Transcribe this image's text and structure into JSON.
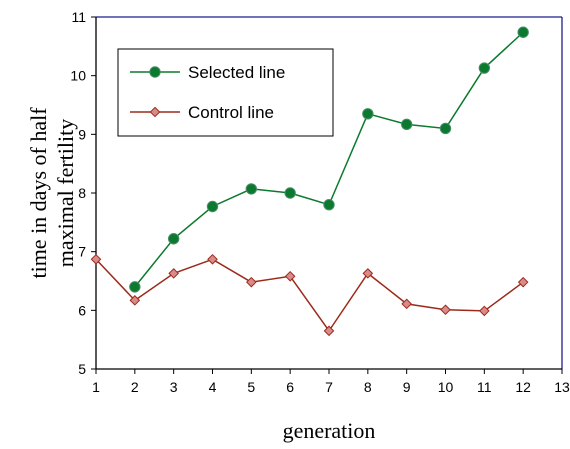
{
  "chart_data": {
    "type": "line",
    "title": "",
    "xlabel": "generation",
    "ylabel": "time in days of half\nmaximal fertility",
    "xlim": [
      1,
      13
    ],
    "ylim": [
      5,
      11
    ],
    "xticks": [
      "1",
      "2",
      "3",
      "4",
      "5",
      "6",
      "7",
      "8",
      "9",
      "10",
      "11",
      "12",
      "13"
    ],
    "yticks": [
      "5",
      "6",
      "7",
      "8",
      "9",
      "10",
      "11"
    ],
    "grid": false,
    "legend_position": "top-left",
    "series": [
      {
        "name": "Selected line",
        "color": "#0b7a2e",
        "marker": "circle",
        "x": [
          2,
          3,
          4,
          5,
          6,
          7,
          8,
          9,
          10,
          11,
          12
        ],
        "y": [
          6.4,
          7.22,
          7.77,
          8.07,
          8.0,
          7.8,
          9.35,
          9.17,
          9.1,
          10.13,
          10.74
        ]
      },
      {
        "name": "Control line",
        "color": "#9c2a1a",
        "marker": "diamond",
        "x": [
          1,
          2,
          3,
          4,
          5,
          6,
          7,
          8,
          9,
          10,
          11,
          12
        ],
        "y": [
          6.87,
          6.17,
          6.63,
          6.87,
          6.48,
          6.58,
          5.65,
          6.63,
          6.11,
          6.01,
          5.99,
          6.48
        ]
      }
    ]
  }
}
